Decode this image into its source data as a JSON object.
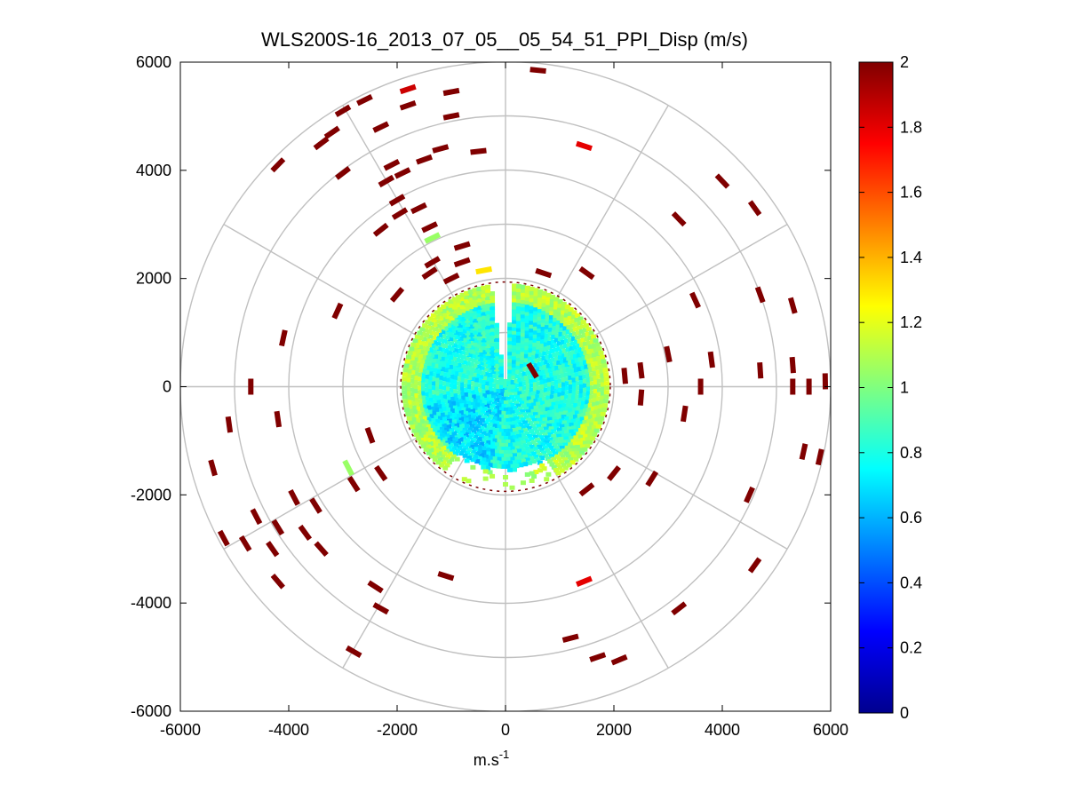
{
  "chart_data": {
    "type": "scatter",
    "subtype": "polar-ppi-scan",
    "title": "WLS200S-16_2013_07_05__05_54_51_PPI_Disp (m/s)",
    "xlabel": "m.s",
    "xlabel_superscript": "-1",
    "ylabel": "",
    "xlim": [
      -6000,
      6000
    ],
    "ylim": [
      -6000,
      6000
    ],
    "x_ticks": [
      -6000,
      -4000,
      -2000,
      0,
      2000,
      4000,
      6000
    ],
    "y_ticks": [
      6000,
      4000,
      2000,
      0,
      -2000,
      -4000,
      -6000
    ],
    "x_tick_labels": [
      "-6000",
      "-4000",
      "-2000",
      "0",
      "2000",
      "4000",
      "6000"
    ],
    "y_tick_labels": [
      "6000",
      "4000",
      "2000",
      "0",
      "-2000",
      "-4000",
      "-6000"
    ],
    "range_rings_m": [
      1000,
      2000,
      3000,
      4000,
      5000,
      6000
    ],
    "azimuth_spokes_deg": [
      0,
      30,
      60,
      90,
      120,
      150,
      180,
      210,
      240,
      270,
      300,
      330
    ],
    "colorbar": {
      "min": 0,
      "max": 2,
      "ticks": [
        0,
        0.2,
        0.4,
        0.6,
        0.8,
        1,
        1.2,
        1.4,
        1.6,
        1.8,
        2
      ],
      "tick_labels": [
        "0",
        "0.2",
        "0.4",
        "0.6",
        "0.8",
        "1",
        "1.2",
        "1.4",
        "1.6",
        "1.8",
        "2"
      ],
      "colormap": "jet"
    },
    "dense_core": {
      "radius_m": 1900,
      "typical_value": 0.8,
      "edge_value": 1.1,
      "gap_azimuth_deg": [
        352,
        4
      ]
    },
    "sparse_points": [
      {
        "x": -1800,
        "y": 5500,
        "v": 1.85
      },
      {
        "x": -1000,
        "y": 5450,
        "v": 2.0
      },
      {
        "x": 600,
        "y": 5850,
        "v": 2.0
      },
      {
        "x": -2600,
        "y": 5300,
        "v": 2.0
      },
      {
        "x": -3000,
        "y": 5100,
        "v": 2.0
      },
      {
        "x": -3200,
        "y": 4700,
        "v": 2.0
      },
      {
        "x": -3400,
        "y": 4500,
        "v": 2.0
      },
      {
        "x": -1800,
        "y": 5200,
        "v": 2.0
      },
      {
        "x": -2300,
        "y": 4800,
        "v": 2.0
      },
      {
        "x": -1000,
        "y": 5000,
        "v": 2.0
      },
      {
        "x": -1200,
        "y": 4400,
        "v": 2.0
      },
      {
        "x": -1500,
        "y": 4200,
        "v": 2.0
      },
      {
        "x": -500,
        "y": 4350,
        "v": 2.0
      },
      {
        "x": 1450,
        "y": 4450,
        "v": 1.8
      },
      {
        "x": -2100,
        "y": 4100,
        "v": 2.0
      },
      {
        "x": -4200,
        "y": 4100,
        "v": 2.0
      },
      {
        "x": -3000,
        "y": 3950,
        "v": 2.0
      },
      {
        "x": -2200,
        "y": 3800,
        "v": 2.0
      },
      {
        "x": -1900,
        "y": 3950,
        "v": 2.0
      },
      {
        "x": -2000,
        "y": 3450,
        "v": 2.0
      },
      {
        "x": -1950,
        "y": 3200,
        "v": 2.0
      },
      {
        "x": -1600,
        "y": 3300,
        "v": 2.0
      },
      {
        "x": -2300,
        "y": 2900,
        "v": 2.0
      },
      {
        "x": -1400,
        "y": 2950,
        "v": 2.0
      },
      {
        "x": -1350,
        "y": 2750,
        "v": 1.05
      },
      {
        "x": -800,
        "y": 2600,
        "v": 2.0
      },
      {
        "x": -1350,
        "y": 2300,
        "v": 2.0
      },
      {
        "x": -800,
        "y": 2300,
        "v": 2.0
      },
      {
        "x": -1000,
        "y": 2000,
        "v": 2.0
      },
      {
        "x": -1400,
        "y": 2100,
        "v": 2.0
      },
      {
        "x": -2000,
        "y": 1700,
        "v": 2.0
      },
      {
        "x": -3100,
        "y": 1400,
        "v": 2.0
      },
      {
        "x": -4100,
        "y": 900,
        "v": 2.0
      },
      {
        "x": -4700,
        "y": 0,
        "v": 2.0
      },
      {
        "x": -5100,
        "y": -700,
        "v": 2.0
      },
      {
        "x": -4200,
        "y": -600,
        "v": 2.0
      },
      {
        "x": -5400,
        "y": -1500,
        "v": 2.0
      },
      {
        "x": -3900,
        "y": -2050,
        "v": 2.0
      },
      {
        "x": -3500,
        "y": -2200,
        "v": 2.0
      },
      {
        "x": -4600,
        "y": -2400,
        "v": 2.0
      },
      {
        "x": -4200,
        "y": -2600,
        "v": 2.0
      },
      {
        "x": -3700,
        "y": -2700,
        "v": 2.0
      },
      {
        "x": -5200,
        "y": -2800,
        "v": 2.0
      },
      {
        "x": -4800,
        "y": -2900,
        "v": 2.0
      },
      {
        "x": -4300,
        "y": -3000,
        "v": 2.0
      },
      {
        "x": -4200,
        "y": -3600,
        "v": 2.0
      },
      {
        "x": -3400,
        "y": -3000,
        "v": 2.0
      },
      {
        "x": -2800,
        "y": -1800,
        "v": 2.0
      },
      {
        "x": -2300,
        "y": -1600,
        "v": 2.0
      },
      {
        "x": -2900,
        "y": -1500,
        "v": 1.05
      },
      {
        "x": -2500,
        "y": -900,
        "v": 2.0
      },
      {
        "x": -2400,
        "y": -3700,
        "v": 2.0
      },
      {
        "x": -2300,
        "y": -4100,
        "v": 2.0
      },
      {
        "x": -2800,
        "y": -4900,
        "v": 2.0
      },
      {
        "x": -1100,
        "y": -3500,
        "v": 2.0
      },
      {
        "x": 1450,
        "y": -3600,
        "v": 1.8
      },
      {
        "x": 1200,
        "y": -4650,
        "v": 2.0
      },
      {
        "x": 1700,
        "y": -5000,
        "v": 2.0
      },
      {
        "x": 2100,
        "y": -5050,
        "v": 2.0
      },
      {
        "x": 3200,
        "y": -4100,
        "v": 2.0
      },
      {
        "x": 4600,
        "y": -3300,
        "v": 2.0
      },
      {
        "x": 4500,
        "y": -2000,
        "v": 2.0
      },
      {
        "x": 5500,
        "y": -1200,
        "v": 2.0
      },
      {
        "x": 5800,
        "y": -1300,
        "v": 2.0
      },
      {
        "x": 2700,
        "y": -1700,
        "v": 2.0
      },
      {
        "x": 1500,
        "y": -1900,
        "v": 2.0
      },
      {
        "x": 2000,
        "y": -1600,
        "v": 2.0
      },
      {
        "x": 3300,
        "y": -500,
        "v": 2.0
      },
      {
        "x": 3800,
        "y": 500,
        "v": 2.0
      },
      {
        "x": 3600,
        "y": 0,
        "v": 2.0
      },
      {
        "x": 3000,
        "y": 600,
        "v": 2.0
      },
      {
        "x": 2500,
        "y": 300,
        "v": 2.0
      },
      {
        "x": 2200,
        "y": 200,
        "v": 2.0
      },
      {
        "x": 2500,
        "y": -200,
        "v": 2.0
      },
      {
        "x": 4700,
        "y": 300,
        "v": 2.0
      },
      {
        "x": 5300,
        "y": 400,
        "v": 2.0
      },
      {
        "x": 5300,
        "y": 0,
        "v": 2.0
      },
      {
        "x": 5600,
        "y": 0,
        "v": 2.0
      },
      {
        "x": 5900,
        "y": 100,
        "v": 2.0
      },
      {
        "x": 4700,
        "y": 1700,
        "v": 2.0
      },
      {
        "x": 3500,
        "y": 1600,
        "v": 2.0
      },
      {
        "x": 5300,
        "y": 1500,
        "v": 2.0
      },
      {
        "x": 3200,
        "y": 3100,
        "v": 2.0
      },
      {
        "x": 4600,
        "y": 3300,
        "v": 2.0
      },
      {
        "x": 4000,
        "y": 3800,
        "v": 2.0
      },
      {
        "x": 1500,
        "y": 2100,
        "v": 2.0
      },
      {
        "x": 700,
        "y": 2100,
        "v": 2.0
      },
      {
        "x": -400,
        "y": 2150,
        "v": 1.3
      },
      {
        "x": 500,
        "y": 300,
        "v": 2.0
      }
    ]
  }
}
